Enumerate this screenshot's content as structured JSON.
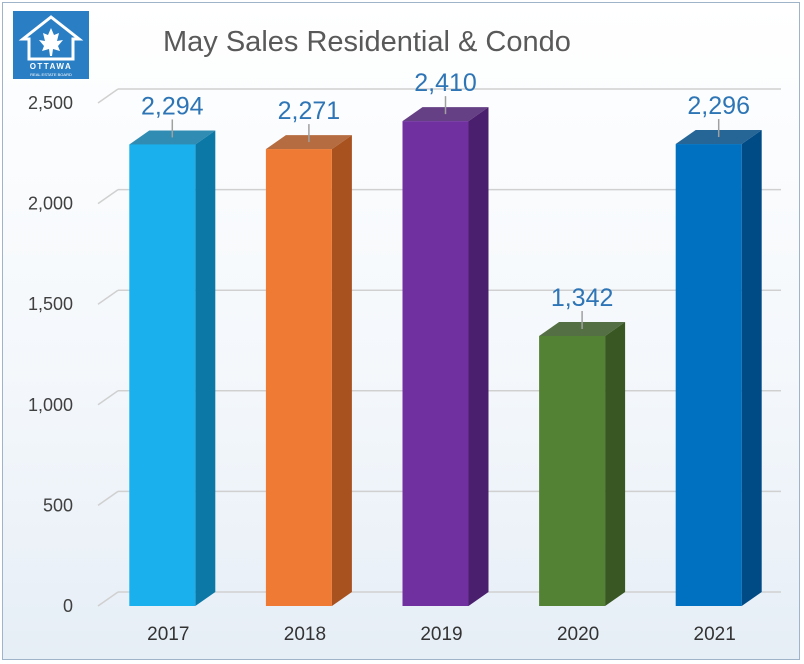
{
  "logo": {
    "text": "OTTAWA",
    "subtext": "REAL ESTATE BOARD",
    "icon": "house-maple-leaf-icon",
    "color": "#2a7fc4"
  },
  "chart_data": {
    "type": "bar",
    "title": "May Sales Residential & Condo",
    "categories": [
      "2017",
      "2018",
      "2019",
      "2020",
      "2021"
    ],
    "values": [
      2294,
      2271,
      2410,
      1342,
      2296
    ],
    "value_labels": [
      "2,294",
      "2,271",
      "2,410",
      "1,342",
      "2,296"
    ],
    "colors": [
      "#1ab0ee",
      "#ee7a33",
      "#7030a0",
      "#548235",
      "#0070c0"
    ],
    "side_colors": [
      "#0c78a6",
      "#a8521f",
      "#4a1f6e",
      "#385723",
      "#004b85"
    ],
    "yticks": [
      0,
      500,
      1000,
      1500,
      2000,
      2500
    ],
    "ytick_labels": [
      "0",
      "500",
      "1,000",
      "1,500",
      "2,000",
      "2,500"
    ],
    "ylim": [
      0,
      2500
    ],
    "grid": true,
    "style": "3d-column",
    "xlabel": "",
    "ylabel": ""
  }
}
